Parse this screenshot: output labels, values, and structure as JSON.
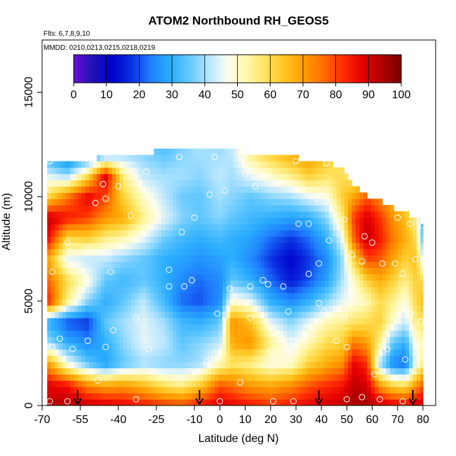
{
  "chart_data": {
    "type": "heatmap",
    "title": "ATOM2 Northbound RH_GEOS5",
    "subtitle_flights": "Flts: 6,7,8,9,10",
    "subtitle_dates": "MMDD: 0210,0213,0215,0218,0219",
    "xlabel": "Latitude (deg N)",
    "ylabel": "Altitude (m)",
    "xlim": [
      -70,
      85
    ],
    "ylim": [
      0,
      17500
    ],
    "x_ticks": [
      -70,
      -55,
      -40,
      -25,
      -10,
      0,
      10,
      20,
      30,
      40,
      50,
      60,
      70,
      80
    ],
    "y_ticks": [
      0,
      5000,
      10000,
      15000
    ],
    "colorbar": {
      "range": [
        0,
        100
      ],
      "ticks": [
        0,
        10,
        20,
        30,
        40,
        50,
        60,
        70,
        80,
        90,
        100
      ],
      "colors": [
        "#6a0fd6",
        "#1f12b5",
        "#0000cc",
        "#0b2fe0",
        "#1f80ff",
        "#2aacff",
        "#62c8ff",
        "#b5e5ff",
        "#fdfdf0",
        "#fff7a8",
        "#ffe15a",
        "#ffc21f",
        "#ff9b00",
        "#ff6a00",
        "#ff2a00",
        "#e40000",
        "#b00000",
        "#7a0000"
      ]
    },
    "rh_profiles": [
      {
        "lat": -68,
        "top": 11700,
        "rh": [
          92,
          88,
          72,
          40,
          30,
          85,
          78,
          70,
          88,
          92,
          60,
          45,
          30
        ]
      },
      {
        "lat": -60,
        "top": 11800,
        "rh": [
          95,
          85,
          48,
          30,
          20,
          55,
          60,
          45,
          60,
          85,
          75,
          40,
          20
        ]
      },
      {
        "lat": -52,
        "top": 11800,
        "rh": [
          92,
          72,
          35,
          25,
          18,
          38,
          48,
          42,
          62,
          80,
          88,
          60,
          25
        ]
      },
      {
        "lat": -45,
        "top": 11900,
        "rh": [
          90,
          68,
          28,
          30,
          35,
          30,
          35,
          42,
          55,
          72,
          80,
          90,
          35
        ]
      },
      {
        "lat": -38,
        "top": 12000,
        "rh": [
          88,
          70,
          35,
          38,
          40,
          35,
          32,
          38,
          52,
          68,
          62,
          55,
          40
        ]
      },
      {
        "lat": -30,
        "top": 12100,
        "rh": [
          85,
          65,
          40,
          45,
          45,
          42,
          35,
          35,
          45,
          55,
          50,
          42,
          38
        ]
      },
      {
        "lat": -22,
        "top": 12200,
        "rh": [
          82,
          58,
          38,
          42,
          40,
          32,
          30,
          30,
          36,
          45,
          42,
          40,
          35
        ]
      },
      {
        "lat": -15,
        "top": 12300,
        "rh": [
          80,
          55,
          38,
          35,
          32,
          22,
          25,
          28,
          32,
          38,
          36,
          40,
          38
        ]
      },
      {
        "lat": -8,
        "top": 12300,
        "rh": [
          85,
          62,
          40,
          38,
          30,
          20,
          22,
          26,
          30,
          35,
          35,
          38,
          40
        ]
      },
      {
        "lat": 0,
        "top": 12300,
        "rh": [
          90,
          78,
          52,
          42,
          35,
          25,
          25,
          28,
          32,
          38,
          40,
          42,
          40
        ]
      },
      {
        "lat": 5,
        "top": 12300,
        "rh": [
          88,
          75,
          58,
          68,
          72,
          50,
          35,
          30,
          30,
          35,
          38,
          40,
          42
        ]
      },
      {
        "lat": 12,
        "top": 12000,
        "rh": [
          85,
          70,
          55,
          72,
          65,
          45,
          30,
          25,
          28,
          32,
          35,
          45,
          55
        ]
      },
      {
        "lat": 20,
        "top": 11900,
        "rh": [
          82,
          68,
          48,
          55,
          45,
          30,
          22,
          18,
          22,
          30,
          38,
          50,
          62
        ]
      },
      {
        "lat": 28,
        "top": 11900,
        "rh": [
          85,
          72,
          50,
          45,
          38,
          25,
          15,
          12,
          18,
          28,
          40,
          55,
          68
        ]
      },
      {
        "lat": 35,
        "top": 11800,
        "rh": [
          88,
          78,
          62,
          52,
          45,
          30,
          20,
          18,
          22,
          30,
          45,
          62,
          72
        ]
      },
      {
        "lat": 42,
        "top": 11700,
        "rh": [
          90,
          82,
          68,
          60,
          52,
          38,
          28,
          25,
          30,
          38,
          48,
          58,
          65
        ]
      },
      {
        "lat": 48,
        "top": 11400,
        "rh": [
          92,
          85,
          72,
          62,
          55,
          45,
          40,
          38,
          45,
          55,
          62,
          60,
          55
        ]
      },
      {
        "lat": 53,
        "top": 10600,
        "rh": [
          95,
          92,
          88,
          75,
          58,
          48,
          50,
          62,
          78,
          82,
          70,
          55,
          45
        ]
      },
      {
        "lat": 58,
        "top": 10000,
        "rh": [
          95,
          90,
          82,
          70,
          60,
          52,
          62,
          80,
          92,
          90,
          78,
          60,
          45
        ]
      },
      {
        "lat": 63,
        "top": 9800,
        "rh": [
          92,
          70,
          40,
          55,
          62,
          60,
          68,
          78,
          85,
          82,
          72,
          60,
          50
        ]
      },
      {
        "lat": 68,
        "top": 9500,
        "rh": [
          90,
          60,
          25,
          35,
          50,
          55,
          62,
          70,
          75,
          72,
          65,
          55,
          45
        ]
      },
      {
        "lat": 73,
        "top": 9200,
        "rh": [
          88,
          58,
          22,
          30,
          42,
          48,
          55,
          62,
          68,
          65,
          60,
          50,
          42
        ]
      },
      {
        "lat": 77,
        "top": 9000,
        "rh": [
          90,
          70,
          45,
          48,
          55,
          60,
          62,
          65,
          60,
          55,
          50,
          45,
          40
        ]
      },
      {
        "lat": 80,
        "top": 8800,
        "rh": [
          92,
          78,
          55,
          52,
          58,
          65,
          60,
          45,
          35,
          30,
          28,
          25,
          25
        ]
      }
    ],
    "sample_points": [
      {
        "x": -67,
        "y": 200
      },
      {
        "x": -60,
        "y": 200
      },
      {
        "x": -48,
        "y": 1200
      },
      {
        "x": -66,
        "y": 2800
      },
      {
        "x": -63,
        "y": 3200
      },
      {
        "x": -58,
        "y": 2700
      },
      {
        "x": -52,
        "y": 3100
      },
      {
        "x": -45,
        "y": 2800
      },
      {
        "x": -42,
        "y": 3600
      },
      {
        "x": -28,
        "y": 2700
      },
      {
        "x": -33,
        "y": 4200
      },
      {
        "x": -55,
        "y": 5500
      },
      {
        "x": -43,
        "y": 6400
      },
      {
        "x": -31,
        "y": 8000
      },
      {
        "x": -15,
        "y": 8300
      },
      {
        "x": -66,
        "y": 6400
      },
      {
        "x": -60,
        "y": 7800
      },
      {
        "x": -52,
        "y": 7500
      },
      {
        "x": -49,
        "y": 9700
      },
      {
        "x": -45,
        "y": 9900
      },
      {
        "x": -35,
        "y": 9100
      },
      {
        "x": -10,
        "y": 9000
      },
      {
        "x": -4,
        "y": 10100
      },
      {
        "x": 2,
        "y": 10300
      },
      {
        "x": -20,
        "y": 5700
      },
      {
        "x": -20,
        "y": 6500
      },
      {
        "x": -14,
        "y": 5700
      },
      {
        "x": -11,
        "y": 6000
      },
      {
        "x": -1,
        "y": 4400
      },
      {
        "x": 4,
        "y": 5600
      },
      {
        "x": 6,
        "y": 5000
      },
      {
        "x": 12,
        "y": 4200
      },
      {
        "x": 12,
        "y": 5700
      },
      {
        "x": 19,
        "y": 5800
      },
      {
        "x": 25,
        "y": 5700
      },
      {
        "x": 27,
        "y": 4500
      },
      {
        "x": 24,
        "y": 3200
      },
      {
        "x": 29,
        "y": 3100
      },
      {
        "x": 34,
        "y": 3300
      },
      {
        "x": 39,
        "y": 6800
      },
      {
        "x": 43,
        "y": 7900
      },
      {
        "x": 52,
        "y": 7200
      },
      {
        "x": 56,
        "y": 6900
      },
      {
        "x": 64,
        "y": 6800
      },
      {
        "x": 69,
        "y": 6800
      },
      {
        "x": 77,
        "y": 7000
      },
      {
        "x": 72,
        "y": 6300
      },
      {
        "x": 75,
        "y": 4400
      },
      {
        "x": 79,
        "y": 4000
      },
      {
        "x": 66,
        "y": 2700
      },
      {
        "x": 73,
        "y": 2200
      },
      {
        "x": 61,
        "y": 1500
      },
      {
        "x": 79,
        "y": 2900
      },
      {
        "x": 50,
        "y": 2800
      },
      {
        "x": 46,
        "y": 3100
      },
      {
        "x": 41,
        "y": 4500
      },
      {
        "x": 49,
        "y": 4200
      },
      {
        "x": 35,
        "y": 8700
      },
      {
        "x": 31,
        "y": 8700
      },
      {
        "x": 49,
        "y": 8900
      },
      {
        "x": 57,
        "y": 8100
      },
      {
        "x": 60,
        "y": 7800
      },
      {
        "x": 75,
        "y": 8700
      },
      {
        "x": 70,
        "y": 9000
      },
      {
        "x": 38,
        "y": 9900
      },
      {
        "x": 30,
        "y": 11700
      },
      {
        "x": 42,
        "y": 11600
      },
      {
        "x": 18,
        "y": 11000
      },
      {
        "x": 14,
        "y": 10500
      },
      {
        "x": 10,
        "y": 11100
      },
      {
        "x": -2,
        "y": 11900
      },
      {
        "x": -16,
        "y": 11900
      },
      {
        "x": -29,
        "y": 11200
      },
      {
        "x": -34,
        "y": 11200
      },
      {
        "x": -40,
        "y": 10500
      },
      {
        "x": -46,
        "y": 10600
      },
      {
        "x": -67,
        "y": 11700
      },
      {
        "x": -70,
        "y": 10100
      },
      {
        "x": 0,
        "y": 200
      },
      {
        "x": 8,
        "y": 1100
      },
      {
        "x": 21,
        "y": 200
      },
      {
        "x": 29,
        "y": 200
      },
      {
        "x": 50,
        "y": 300
      },
      {
        "x": 63,
        "y": 300
      },
      {
        "x": 72,
        "y": 200
      },
      {
        "x": 56,
        "y": 400
      },
      {
        "x": -33,
        "y": 300
      },
      {
        "x": 39,
        "y": 4900
      },
      {
        "x": 35,
        "y": 6300
      },
      {
        "x": 20,
        "y": 2600
      },
      {
        "x": -5,
        "y": 2100
      },
      {
        "x": 17,
        "y": 6000
      },
      {
        "x": 80,
        "y": 8600
      }
    ],
    "flight_arrows_lat": [
      -56,
      -8,
      39,
      76
    ]
  }
}
